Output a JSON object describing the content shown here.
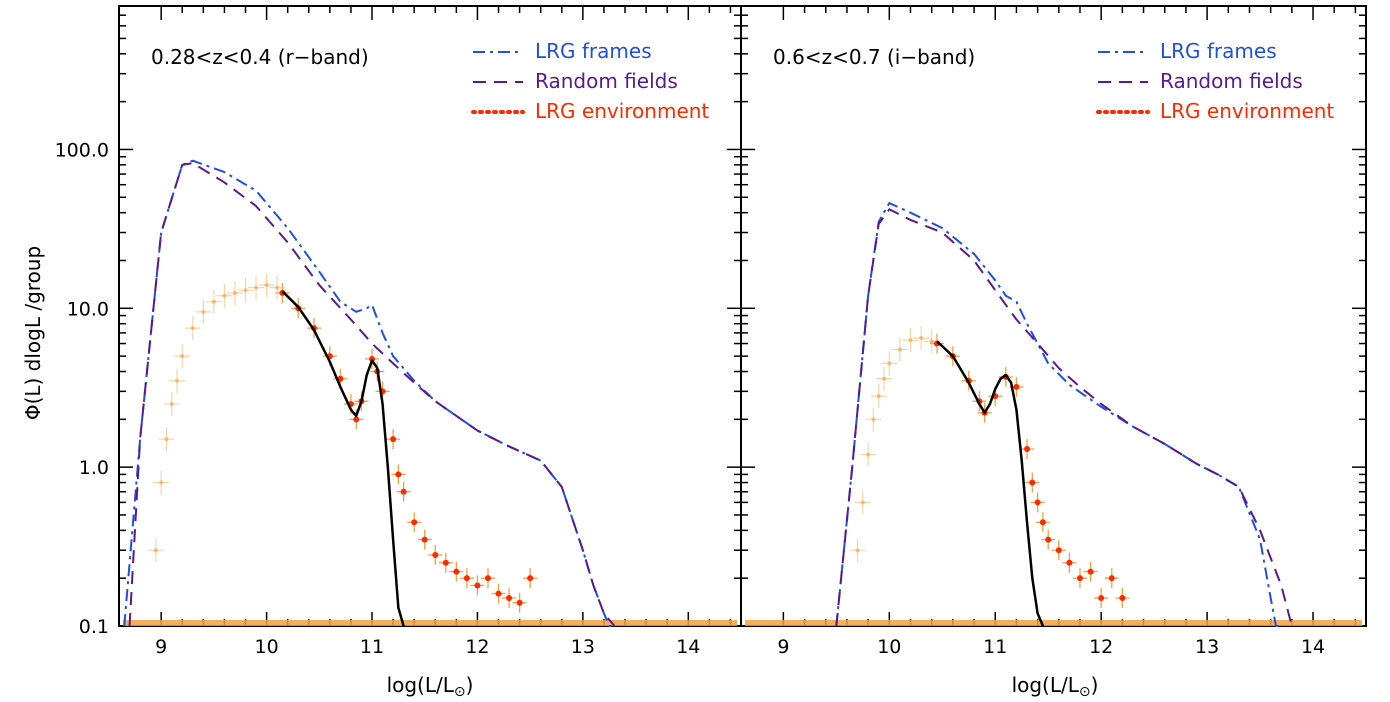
{
  "figure": {
    "ylabel": "Φ(L) dlogL /group",
    "xlabel": "log(L/L",
    "xlabel_sub": "⊙",
    "xlabel_close": ")"
  },
  "chart_data": [
    {
      "type": "line",
      "title": "0.28<z<0.4 (r−band)",
      "xlim": [
        8.6,
        14.5
      ],
      "ylim": [
        0.1,
        800
      ],
      "yscale": "log",
      "xticks": [
        9,
        10,
        11,
        12,
        13,
        14
      ],
      "yticks": [
        {
          "value": 0.1,
          "label": "0.1"
        },
        {
          "value": 1.0,
          "label": "1.0"
        },
        {
          "value": 10.0,
          "label": "10.0"
        },
        {
          "value": 100.0,
          "label": "100.0"
        }
      ],
      "legend_position": "top-right",
      "colors": {
        "frames": "#1f4fe0",
        "random": "#5a1a8f",
        "env": "#ff2a00",
        "errors": "#f5a040",
        "fit": "#000000"
      },
      "series": [
        {
          "name": "LRG frames",
          "style": "dash-dot",
          "x": [
            8.65,
            8.8,
            9.0,
            9.2,
            9.3,
            9.6,
            9.9,
            10.2,
            10.5,
            10.7,
            10.85,
            10.95,
            11.0,
            11.1,
            11.2,
            11.4,
            11.6,
            12.0,
            12.3,
            12.6,
            12.8,
            13.0,
            13.1,
            13.2,
            13.25,
            13.3
          ],
          "y": [
            0.1,
            1.5,
            30,
            80,
            85,
            72,
            55,
            32,
            17,
            11,
            9.5,
            10,
            10.5,
            7,
            5,
            3.5,
            2.6,
            1.7,
            1.35,
            1.1,
            0.75,
            0.3,
            0.18,
            0.12,
            0.1,
            0.1
          ]
        },
        {
          "name": "Random fields",
          "style": "dashed",
          "x": [
            8.7,
            8.8,
            9.0,
            9.2,
            9.3,
            9.6,
            9.9,
            10.2,
            10.5,
            10.8,
            11.0,
            11.2,
            11.4,
            11.6,
            12.0,
            12.3,
            12.6,
            12.8,
            13.0,
            13.1,
            13.2,
            13.3
          ],
          "y": [
            0.1,
            1.5,
            30,
            80,
            82,
            62,
            44,
            26,
            14,
            8.5,
            6,
            4.5,
            3.4,
            2.6,
            1.7,
            1.35,
            1.1,
            0.75,
            0.3,
            0.18,
            0.12,
            0.1
          ]
        },
        {
          "name": "LRG environment",
          "style": "dots",
          "x": [
            10.15,
            10.3,
            10.45,
            10.6,
            10.7,
            10.8,
            10.85,
            10.9,
            11.0,
            11.05,
            11.1,
            11.2,
            11.25,
            11.3,
            11.4,
            11.5,
            11.6,
            11.7,
            11.8,
            11.9,
            12.0,
            12.1,
            12.2,
            12.3,
            12.4,
            12.5
          ],
          "y": [
            12.5,
            10,
            7.5,
            5,
            3.6,
            2.5,
            2.0,
            2.6,
            4.8,
            4.0,
            3.0,
            1.5,
            0.9,
            0.7,
            0.45,
            0.35,
            0.28,
            0.25,
            0.22,
            0.2,
            0.18,
            0.2,
            0.16,
            0.15,
            0.14,
            0.2
          ]
        },
        {
          "name": "",
          "style": "faint-points",
          "x": [
            8.95,
            9.0,
            9.05,
            9.1,
            9.15,
            9.2,
            9.3,
            9.4,
            9.5,
            9.6,
            9.7,
            9.8,
            9.9,
            10.0,
            10.1
          ],
          "y": [
            0.3,
            0.8,
            1.5,
            2.5,
            3.5,
            5,
            7.5,
            9.5,
            11,
            12,
            12.5,
            13,
            13.5,
            14,
            13.5
          ]
        },
        {
          "name": "",
          "style": "fit",
          "x": [
            10.15,
            10.3,
            10.45,
            10.6,
            10.7,
            10.8,
            10.85,
            10.9,
            10.95,
            11.0,
            11.05,
            11.1,
            11.15,
            11.2,
            11.25,
            11.3
          ],
          "y": [
            12.8,
            10.2,
            7.3,
            4.6,
            3.2,
            2.3,
            2.1,
            2.6,
            3.8,
            4.7,
            4.2,
            2.5,
            1.0,
            0.35,
            0.13,
            0.1
          ]
        }
      ]
    },
    {
      "type": "line",
      "title": "0.6<z<0.7 (i−band)",
      "xlim": [
        8.6,
        14.5
      ],
      "ylim": [
        0.1,
        800
      ],
      "yscale": "log",
      "xticks": [
        9,
        10,
        11,
        12,
        13,
        14
      ],
      "yticks": [
        {
          "value": 0.1,
          "label": ""
        },
        {
          "value": 1.0,
          "label": ""
        },
        {
          "value": 10.0,
          "label": ""
        },
        {
          "value": 100.0,
          "label": ""
        }
      ],
      "legend_position": "top-right",
      "colors": {
        "frames": "#1f4fe0",
        "random": "#5a1a8f",
        "env": "#ff2a00",
        "errors": "#f5a040",
        "fit": "#000000"
      },
      "series": [
        {
          "name": "LRG frames",
          "style": "dash-dot",
          "x": [
            9.5,
            9.65,
            9.8,
            9.9,
            10.0,
            10.2,
            10.5,
            10.8,
            11.0,
            11.1,
            11.2,
            11.3,
            11.5,
            11.7,
            12.0,
            12.3,
            12.6,
            12.9,
            13.1,
            13.3,
            13.5,
            13.6,
            13.65,
            13.7
          ],
          "y": [
            0.1,
            1.0,
            12,
            35,
            46,
            40,
            32,
            22,
            15,
            12,
            11,
            8,
            4.5,
            3.3,
            2.4,
            1.8,
            1.4,
            1.05,
            0.9,
            0.75,
            0.35,
            0.15,
            0.1,
            0.1
          ]
        },
        {
          "name": "Random fields",
          "style": "dashed",
          "x": [
            9.5,
            9.65,
            9.8,
            9.9,
            10.0,
            10.2,
            10.5,
            10.8,
            11.0,
            11.2,
            11.4,
            11.6,
            11.8,
            12.0,
            12.3,
            12.6,
            12.9,
            13.1,
            13.3,
            13.5,
            13.7,
            13.8
          ],
          "y": [
            0.1,
            1.0,
            12,
            34,
            42,
            36,
            30,
            20,
            13,
            8.5,
            6,
            4.2,
            3.2,
            2.5,
            1.8,
            1.4,
            1.05,
            0.9,
            0.75,
            0.4,
            0.18,
            0.1
          ]
        },
        {
          "name": "LRG environment",
          "style": "dots",
          "x": [
            10.45,
            10.6,
            10.75,
            10.85,
            10.9,
            11.0,
            11.1,
            11.2,
            11.3,
            11.35,
            11.4,
            11.45,
            11.5,
            11.6,
            11.7,
            11.8,
            11.9,
            12.0,
            12.1,
            12.2
          ],
          "y": [
            6,
            5,
            3.5,
            2.6,
            2.2,
            2.8,
            3.7,
            3.2,
            1.3,
            0.8,
            0.6,
            0.45,
            0.35,
            0.3,
            0.25,
            0.2,
            0.22,
            0.15,
            0.2,
            0.15
          ]
        },
        {
          "name": "",
          "style": "faint-points",
          "x": [
            9.7,
            9.75,
            9.8,
            9.85,
            9.9,
            9.95,
            10.0,
            10.1,
            10.2,
            10.3,
            10.4
          ],
          "y": [
            0.3,
            0.6,
            1.2,
            2.0,
            2.8,
            3.6,
            4.5,
            5.5,
            6.3,
            6.5,
            6.2
          ]
        },
        {
          "name": "",
          "style": "fit",
          "x": [
            10.45,
            10.6,
            10.75,
            10.85,
            10.9,
            10.95,
            11.0,
            11.05,
            11.1,
            11.15,
            11.2,
            11.25,
            11.3,
            11.35,
            11.4,
            11.45
          ],
          "y": [
            6.2,
            5.0,
            3.4,
            2.5,
            2.2,
            2.5,
            3.1,
            3.6,
            3.8,
            3.4,
            2.3,
            1.1,
            0.45,
            0.2,
            0.12,
            0.1
          ]
        }
      ]
    }
  ]
}
